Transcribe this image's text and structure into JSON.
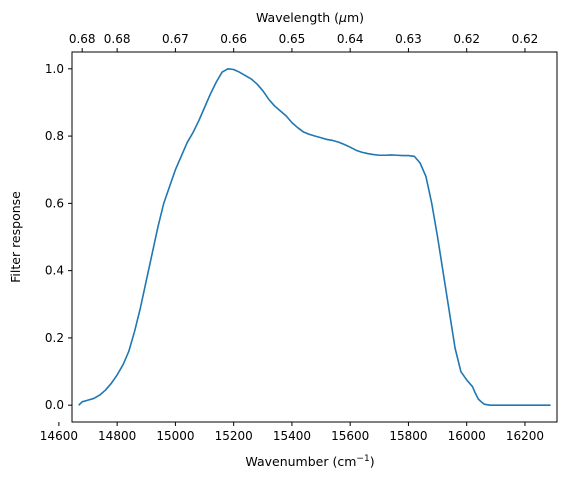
{
  "chart_data": {
    "type": "line",
    "xlabel": "Wavenumber (cm",
    "xlabel_sup": "−1",
    "xlabel_close": ")",
    "ylabel": "Filter response",
    "top_xlabel": "Wavelength (",
    "top_xlabel_mu": "μ",
    "top_xlabel_close": "m)",
    "xlim": [
      14645,
      16310
    ],
    "ylim": [
      -0.05,
      1.05
    ],
    "x_ticks": [
      14600,
      14800,
      15000,
      15200,
      15400,
      15600,
      15800,
      16000,
      16200
    ],
    "x_tick_labels": [
      "14600",
      "14800",
      "15000",
      "15200",
      "15400",
      "15600",
      "15800",
      "16000",
      "16200"
    ],
    "y_ticks": [
      0.0,
      0.2,
      0.4,
      0.6,
      0.8,
      1.0
    ],
    "y_tick_labels": [
      "0.0",
      "0.2",
      "0.4",
      "0.6",
      "0.8",
      "1.0"
    ],
    "top_ticks": [
      14680,
      14800,
      15000,
      15200,
      15400,
      15600,
      15800,
      16000,
      16200
    ],
    "top_tick_labels": [
      "0.68",
      "0.68",
      "0.67",
      "0.66",
      "0.65",
      "0.64",
      "0.63",
      "0.62",
      "0.62"
    ],
    "grid": false,
    "line_color": "#1f77b4",
    "series": [
      {
        "x": [
          14668,
          14680,
          14700,
          14720,
          14740,
          14760,
          14780,
          14800,
          14820,
          14840,
          14860,
          14880,
          14900,
          14920,
          14940,
          14960,
          14980,
          15000,
          15020,
          15040,
          15060,
          15080,
          15100,
          15120,
          15140,
          15160,
          15180,
          15200,
          15220,
          15240,
          15260,
          15280,
          15300,
          15320,
          15340,
          15360,
          15380,
          15400,
          15420,
          15440,
          15460,
          15480,
          15500,
          15520,
          15540,
          15560,
          15580,
          15600,
          15620,
          15640,
          15660,
          15680,
          15700,
          15720,
          15740,
          15760,
          15780,
          15800,
          15820,
          15840,
          15860,
          15880,
          15900,
          15920,
          15940,
          15960,
          15980,
          16000,
          16020,
          16030,
          16040,
          16050,
          16060,
          16080,
          16100,
          16120,
          16140,
          16160,
          16180,
          16200,
          16220,
          16240,
          16260,
          16275,
          16288
        ],
        "y": [
          0.0,
          0.01,
          0.015,
          0.02,
          0.03,
          0.045,
          0.065,
          0.09,
          0.12,
          0.16,
          0.22,
          0.29,
          0.37,
          0.45,
          0.53,
          0.6,
          0.65,
          0.7,
          0.74,
          0.78,
          0.81,
          0.845,
          0.885,
          0.925,
          0.96,
          0.99,
          1.0,
          0.998,
          0.99,
          0.98,
          0.97,
          0.955,
          0.935,
          0.91,
          0.89,
          0.875,
          0.86,
          0.84,
          0.825,
          0.812,
          0.805,
          0.8,
          0.795,
          0.79,
          0.787,
          0.782,
          0.775,
          0.767,
          0.758,
          0.752,
          0.748,
          0.745,
          0.743,
          0.743,
          0.744,
          0.743,
          0.742,
          0.742,
          0.74,
          0.72,
          0.68,
          0.6,
          0.5,
          0.39,
          0.28,
          0.17,
          0.1,
          0.075,
          0.055,
          0.035,
          0.018,
          0.01,
          0.003,
          0.0,
          0.0,
          0.0,
          0.0,
          0.0,
          0.0,
          0.0,
          0.0,
          0.0,
          0.0,
          0.0,
          0.0
        ]
      }
    ]
  }
}
